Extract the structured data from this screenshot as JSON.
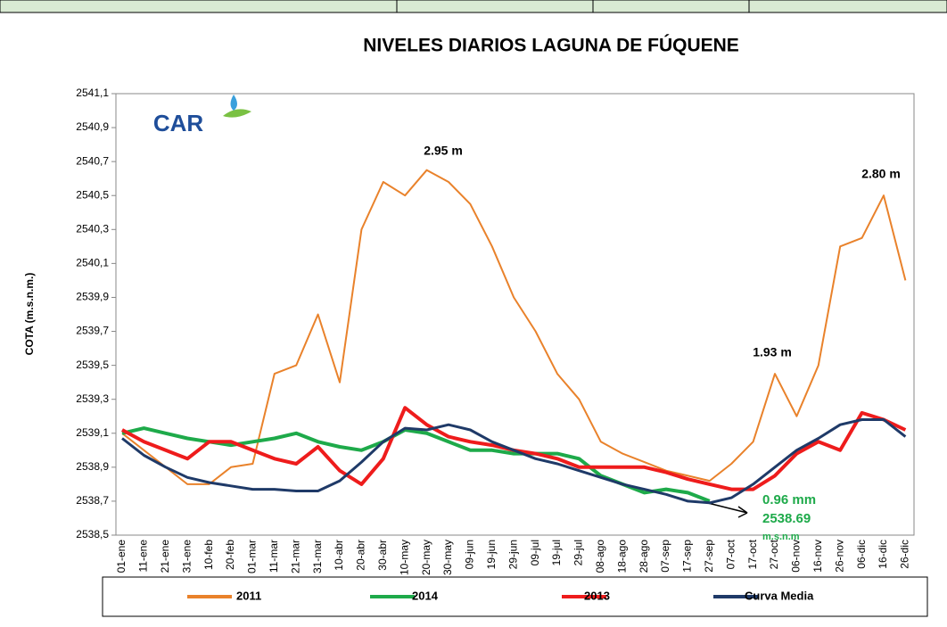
{
  "chart_data": {
    "type": "line",
    "title": "NIVELES DIARIOS LAGUNA DE FÚQUENE",
    "y_label": "COTA (m.s.n.m.)",
    "logo": "CAR",
    "categories": [
      "01-ene",
      "11-ene",
      "21-ene",
      "31-ene",
      "10-feb",
      "20-feb",
      "01-mar",
      "11-mar",
      "21-mar",
      "31-mar",
      "10-abr",
      "20-abr",
      "30-abr",
      "10-may",
      "20-may",
      "30-may",
      "09-jun",
      "19-jun",
      "29-jun",
      "09-jul",
      "19-jul",
      "29-jul",
      "08-ago",
      "18-ago",
      "28-ago",
      "07-sep",
      "17-sep",
      "27-sep",
      "07-oct",
      "17-oct",
      "27-oct",
      "06-nov",
      "16-nov",
      "26-nov",
      "06-dic",
      "16-dic",
      "26-dic"
    ],
    "series": [
      {
        "name": "2011",
        "color": "#e9822b",
        "width": 2,
        "values": [
          2539.1,
          2539.0,
          2538.9,
          2538.8,
          2538.8,
          2538.9,
          2538.92,
          2539.45,
          2539.5,
          2539.8,
          2539.4,
          2540.3,
          2540.58,
          2540.5,
          2540.65,
          2540.58,
          2540.45,
          2540.2,
          2539.9,
          2539.7,
          2539.45,
          2539.3,
          2539.05,
          2538.98,
          2538.93,
          2538.88,
          2538.85,
          2538.82,
          2538.92,
          2539.05,
          2539.45,
          2539.2,
          2539.5,
          2540.2,
          2540.25,
          2540.5,
          2540.0
        ]
      },
      {
        "name": "2014",
        "color": "#1eaa4a",
        "width": 4,
        "values": [
          2539.1,
          2539.13,
          2539.1,
          2539.07,
          2539.05,
          2539.03,
          2539.05,
          2539.07,
          2539.1,
          2539.05,
          2539.02,
          2539.0,
          2539.05,
          2539.12,
          2539.1,
          2539.05,
          2539.0,
          2539.0,
          2538.98,
          2538.98,
          2538.98,
          2538.95,
          2538.85,
          2538.8,
          2538.75,
          2538.77,
          2538.75,
          2538.7,
          null,
          null,
          null,
          null,
          null,
          null,
          null,
          null,
          null
        ]
      },
      {
        "name": "2013",
        "color": "#ee1c1c",
        "width": 4,
        "values": [
          2539.12,
          2539.05,
          2539.0,
          2538.95,
          2539.05,
          2539.05,
          2539.0,
          2538.95,
          2538.92,
          2539.02,
          2538.88,
          2538.8,
          2538.95,
          2539.25,
          2539.15,
          2539.08,
          2539.05,
          2539.03,
          2539.0,
          2538.98,
          2538.95,
          2538.9,
          2538.9,
          2538.9,
          2538.9,
          2538.87,
          2538.83,
          2538.8,
          2538.77,
          2538.77,
          2538.85,
          2538.98,
          2539.05,
          2539.0,
          2539.22,
          2539.18,
          2539.12
        ]
      },
      {
        "name": "Curva Media",
        "color": "#1f3a68",
        "width": 3,
        "values": [
          2539.07,
          2538.97,
          2538.9,
          2538.84,
          2538.81,
          2538.79,
          2538.77,
          2538.77,
          2538.76,
          2538.76,
          2538.82,
          2538.93,
          2539.05,
          2539.13,
          2539.12,
          2539.15,
          2539.12,
          2539.05,
          2539.0,
          2538.95,
          2538.92,
          2538.88,
          2538.84,
          2538.8,
          2538.77,
          2538.74,
          2538.7,
          2538.69,
          2538.72,
          2538.8,
          2538.9,
          2539.0,
          2539.07,
          2539.15,
          2539.18,
          2539.18,
          2539.08
        ]
      }
    ],
    "ylim": [
      2538.5,
      2541.1
    ],
    "yticks": [
      {
        "value": 2538.5,
        "label": "2538,5"
      },
      {
        "value": 2538.7,
        "label": "2538,7"
      },
      {
        "value": 2538.9,
        "label": "2538,9"
      },
      {
        "value": 2539.1,
        "label": "2539,1"
      },
      {
        "value": 2539.3,
        "label": "2539,3"
      },
      {
        "value": 2539.5,
        "label": "2539,5"
      },
      {
        "value": 2539.7,
        "label": "2539,7"
      },
      {
        "value": 2539.9,
        "label": "2539,9"
      },
      {
        "value": 2540.1,
        "label": "2540,1"
      },
      {
        "value": 2540.3,
        "label": "2540,3"
      },
      {
        "value": 2540.5,
        "label": "2540,5"
      },
      {
        "value": 2540.7,
        "label": "2540,7"
      },
      {
        "value": 2540.9,
        "label": "2540,9"
      },
      {
        "value": 2541.1,
        "label": "2541,1"
      }
    ],
    "annotations": [
      "2.95 m",
      "2.80 m",
      "1.93 m",
      "0.96 mm",
      "2538.69",
      "m.s.n.m"
    ]
  }
}
